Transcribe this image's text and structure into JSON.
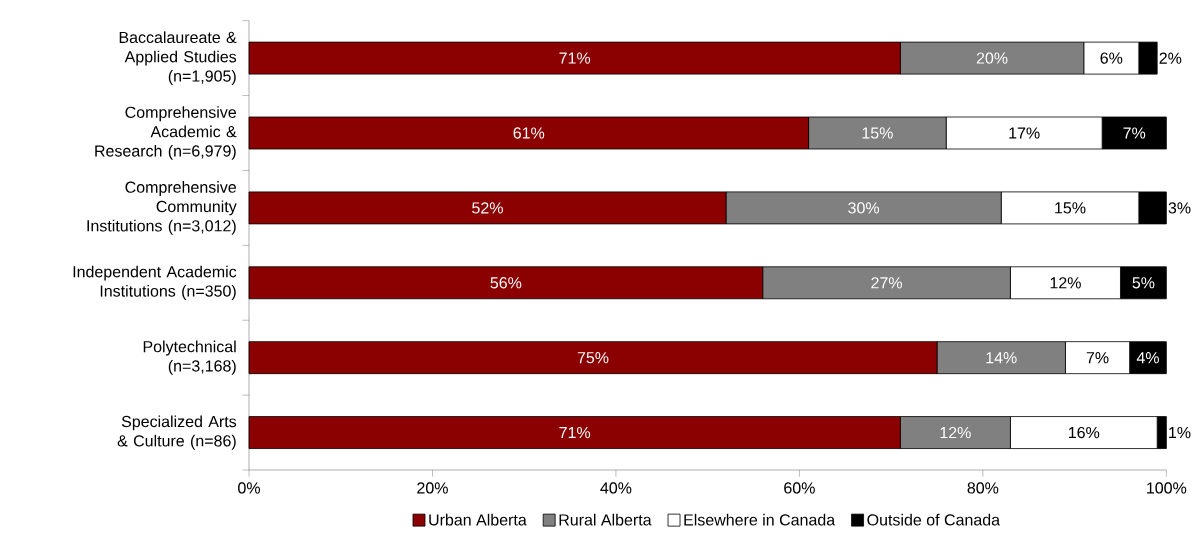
{
  "chart_data": {
    "type": "bar",
    "orientation": "horizontal",
    "stacked": true,
    "legend": "bottom",
    "categories": [
      "Baccalaureate & Applied Studies (n=1,905)",
      "Comprehensive Academic & Research (n=6,979)",
      "Comprehensive Community Institutions (n=3,012)",
      "Independent Academic Institutions (n=350)",
      "Polytechnical (n=3,168)",
      "Specialized Arts & Culture (n=86)"
    ],
    "xlim": [
      0,
      100
    ],
    "xticks": [
      {
        "value": 0,
        "label": "0%"
      },
      {
        "value": 20,
        "label": "20%"
      },
      {
        "value": 40,
        "label": "40%"
      },
      {
        "value": 60,
        "label": "60%"
      },
      {
        "value": 80,
        "label": "80%"
      },
      {
        "value": 100,
        "label": "100%"
      }
    ],
    "series": [
      {
        "name": "Urban Alberta",
        "color": "#8b0000",
        "values": [
          71,
          61,
          52,
          56,
          75,
          71
        ],
        "value_labels": [
          "71%",
          "61%",
          "52%",
          "56%",
          "75%",
          "71%"
        ]
      },
      {
        "name": "Rural Alberta",
        "color": "#808080",
        "values": [
          20,
          15,
          30,
          27,
          14,
          12
        ],
        "value_labels": [
          "20%",
          "15%",
          "30%",
          "27%",
          "14%",
          "12%"
        ]
      },
      {
        "name": "Elsewhere in Canada",
        "color": "#ffffff",
        "values": [
          6,
          17,
          15,
          12,
          7,
          16
        ],
        "value_labels": [
          "6%",
          "17%",
          "15%",
          "12%",
          "7%",
          "16%"
        ]
      },
      {
        "name": "Outside of Canada",
        "color": "#000000",
        "values": [
          2,
          7,
          3,
          5,
          4,
          1
        ],
        "value_labels": [
          "2%",
          "7%",
          "3%",
          "5%",
          "4%",
          "1%"
        ]
      }
    ]
  }
}
